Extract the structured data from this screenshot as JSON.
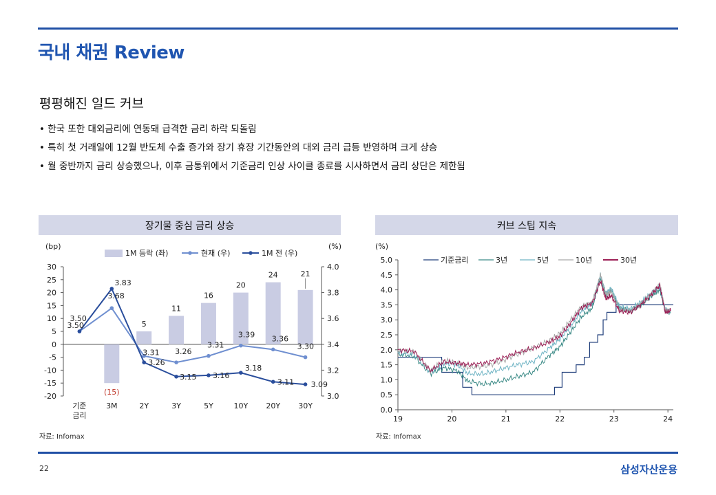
{
  "page": {
    "title": "국내 채권 Review",
    "subtitle": "평평해진 일드 커브",
    "bullets": [
      "한국 또한 대외금리에 연동돼 급격한 금리 하락 되돌림",
      "특히 첫 거래일에 12월 반도체 수출 증가와 장기 휴장 기간동안의 대외 금리 급등 반영하며 크게 상승",
      "월 중반까지 금리 상승했으나, 이후 금통위에서 기준금리 인상 사이클 종료를 시사하면서 금리 상단은 제한됨"
    ],
    "page_number": "22",
    "brand": "삼성자산운용"
  },
  "left_chart": {
    "header": "장기물 중심 금리 상승",
    "source": "자료: Infomax"
  },
  "right_chart": {
    "header": "커브 스팁 지속",
    "source": "자료: Infomax"
  },
  "chart_data": [
    {
      "type": "bar",
      "title": "장기물 중심 금리 상승",
      "categories": [
        "기준\n금리",
        "3M",
        "2Y",
        "3Y",
        "5Y",
        "10Y",
        "20Y",
        "30Y"
      ],
      "left_axis_unit": "(bp)",
      "right_axis_unit": "(%)",
      "ylim_left": [
        -20,
        30
      ],
      "ylim_right": [
        3.0,
        4.0
      ],
      "left_ticks": [
        -20,
        -15,
        -10,
        -5,
        0,
        5,
        10,
        15,
        20,
        25,
        30
      ],
      "right_ticks": [
        "3.0",
        "3.2",
        "3.4",
        "3.6",
        "3.8",
        "4.0"
      ],
      "legend": {
        "bar": "1M 등락 (좌)",
        "current": "현재 (우)",
        "prev": "1M 전 (우)"
      },
      "series": [
        {
          "name": "1M 등락 (좌)",
          "kind": "bar",
          "axis": "left",
          "color": "#c9cce3",
          "values": [
            0,
            -15,
            5,
            11,
            16,
            20,
            24,
            21
          ],
          "labels": [
            "",
            "(15)",
            "5",
            "11",
            "16",
            "20",
            "24",
            "21"
          ]
        },
        {
          "name": "현재 (우)",
          "kind": "line",
          "axis": "right",
          "color": "#6f8fd0",
          "values": [
            3.5,
            3.68,
            3.31,
            3.26,
            3.31,
            3.39,
            3.36,
            3.3
          ],
          "labels": [
            "3.50",
            "3.68",
            "3.31",
            "3.26",
            "3.31",
            "3.39",
            "3.36",
            "3.30"
          ]
        },
        {
          "name": "1M 전 (우)",
          "kind": "line",
          "axis": "right",
          "color": "#2a4e9c",
          "values": [
            3.5,
            3.83,
            3.26,
            3.15,
            3.16,
            3.18,
            3.11,
            3.09
          ],
          "labels": [
            "3.50",
            "3.83",
            "3.26",
            "3.15",
            "3.16",
            "3.18",
            "3.11",
            "3.09"
          ]
        }
      ]
    },
    {
      "type": "line",
      "title": "커브 스팁 지속",
      "ylabel": "(%)",
      "ylim": [
        0.0,
        5.0
      ],
      "y_ticks": [
        "0.0",
        "0.5",
        "1.0",
        "1.5",
        "2.0",
        "2.5",
        "3.0",
        "3.5",
        "4.0",
        "4.5",
        "5.0"
      ],
      "x_ticks": [
        "19",
        "20",
        "21",
        "22",
        "23",
        "24"
      ],
      "xlim": [
        2019.0,
        2024.1
      ],
      "series": [
        {
          "name": "기준금리",
          "color": "#1f3d7a",
          "x": [
            2019.0,
            2019.55,
            2019.81,
            2020.2,
            2020.37,
            2021.65,
            2021.9,
            2022.04,
            2022.3,
            2022.45,
            2022.55,
            2022.7,
            2022.8,
            2022.87,
            2023.04,
            2024.1
          ],
          "y": [
            1.75,
            1.75,
            1.25,
            0.75,
            0.5,
            0.5,
            0.75,
            1.25,
            1.5,
            1.75,
            2.25,
            2.5,
            3.0,
            3.25,
            3.5,
            3.5
          ]
        },
        {
          "name": "3년",
          "color": "#3b8a86",
          "x": [
            2019.0,
            2019.3,
            2019.6,
            2019.85,
            2020.1,
            2020.3,
            2020.6,
            2020.9,
            2021.2,
            2021.5,
            2021.8,
            2022.0,
            2022.2,
            2022.4,
            2022.6,
            2022.75,
            2022.85,
            2022.95,
            2023.1,
            2023.3,
            2023.5,
            2023.7,
            2023.85,
            2023.95,
            2024.05
          ],
          "y": [
            1.85,
            1.78,
            1.2,
            1.4,
            1.3,
            0.95,
            0.85,
            0.95,
            1.1,
            1.25,
            1.8,
            2.1,
            2.6,
            3.1,
            3.4,
            4.4,
            3.8,
            4.0,
            3.4,
            3.3,
            3.5,
            3.8,
            4.0,
            3.3,
            3.25
          ]
        },
        {
          "name": "5년",
          "color": "#6fb4c4",
          "x": [
            2019.0,
            2019.3,
            2019.6,
            2019.85,
            2020.1,
            2020.3,
            2020.6,
            2020.9,
            2021.2,
            2021.5,
            2021.8,
            2022.0,
            2022.2,
            2022.4,
            2022.6,
            2022.75,
            2022.85,
            2022.95,
            2023.1,
            2023.3,
            2023.5,
            2023.7,
            2023.85,
            2023.95,
            2024.05
          ],
          "y": [
            1.9,
            1.85,
            1.25,
            1.55,
            1.5,
            1.2,
            1.2,
            1.35,
            1.5,
            1.6,
            2.05,
            2.35,
            2.8,
            3.3,
            3.55,
            4.5,
            3.9,
            4.05,
            3.45,
            3.35,
            3.6,
            3.9,
            4.1,
            3.35,
            3.3
          ]
        },
        {
          "name": "10년",
          "color": "#a9a9a9",
          "x": [
            2019.0,
            2019.3,
            2019.6,
            2019.85,
            2020.1,
            2020.3,
            2020.6,
            2020.9,
            2021.2,
            2021.5,
            2021.8,
            2022.0,
            2022.2,
            2022.4,
            2022.6,
            2022.75,
            2022.85,
            2022.95,
            2023.1,
            2023.3,
            2023.5,
            2023.7,
            2023.85,
            2023.95,
            2024.05
          ],
          "y": [
            2.0,
            1.95,
            1.3,
            1.65,
            1.55,
            1.4,
            1.45,
            1.6,
            1.85,
            2.05,
            2.3,
            2.55,
            3.0,
            3.45,
            3.6,
            4.5,
            3.85,
            3.95,
            3.35,
            3.3,
            3.55,
            3.9,
            4.2,
            3.3,
            3.3
          ]
        },
        {
          "name": "30년",
          "color": "#9c1e55",
          "x": [
            2019.0,
            2019.3,
            2019.6,
            2019.85,
            2020.1,
            2020.3,
            2020.6,
            2020.9,
            2021.2,
            2021.5,
            2021.8,
            2022.0,
            2022.2,
            2022.4,
            2022.6,
            2022.75,
            2022.85,
            2022.95,
            2023.1,
            2023.3,
            2023.5,
            2023.7,
            2023.85,
            2023.95,
            2024.05
          ],
          "y": [
            2.0,
            1.95,
            1.3,
            1.6,
            1.55,
            1.5,
            1.55,
            1.7,
            1.9,
            2.05,
            2.25,
            2.45,
            2.9,
            3.4,
            3.55,
            4.3,
            3.7,
            3.8,
            3.3,
            3.25,
            3.5,
            3.85,
            4.15,
            3.25,
            3.3
          ]
        }
      ]
    }
  ]
}
